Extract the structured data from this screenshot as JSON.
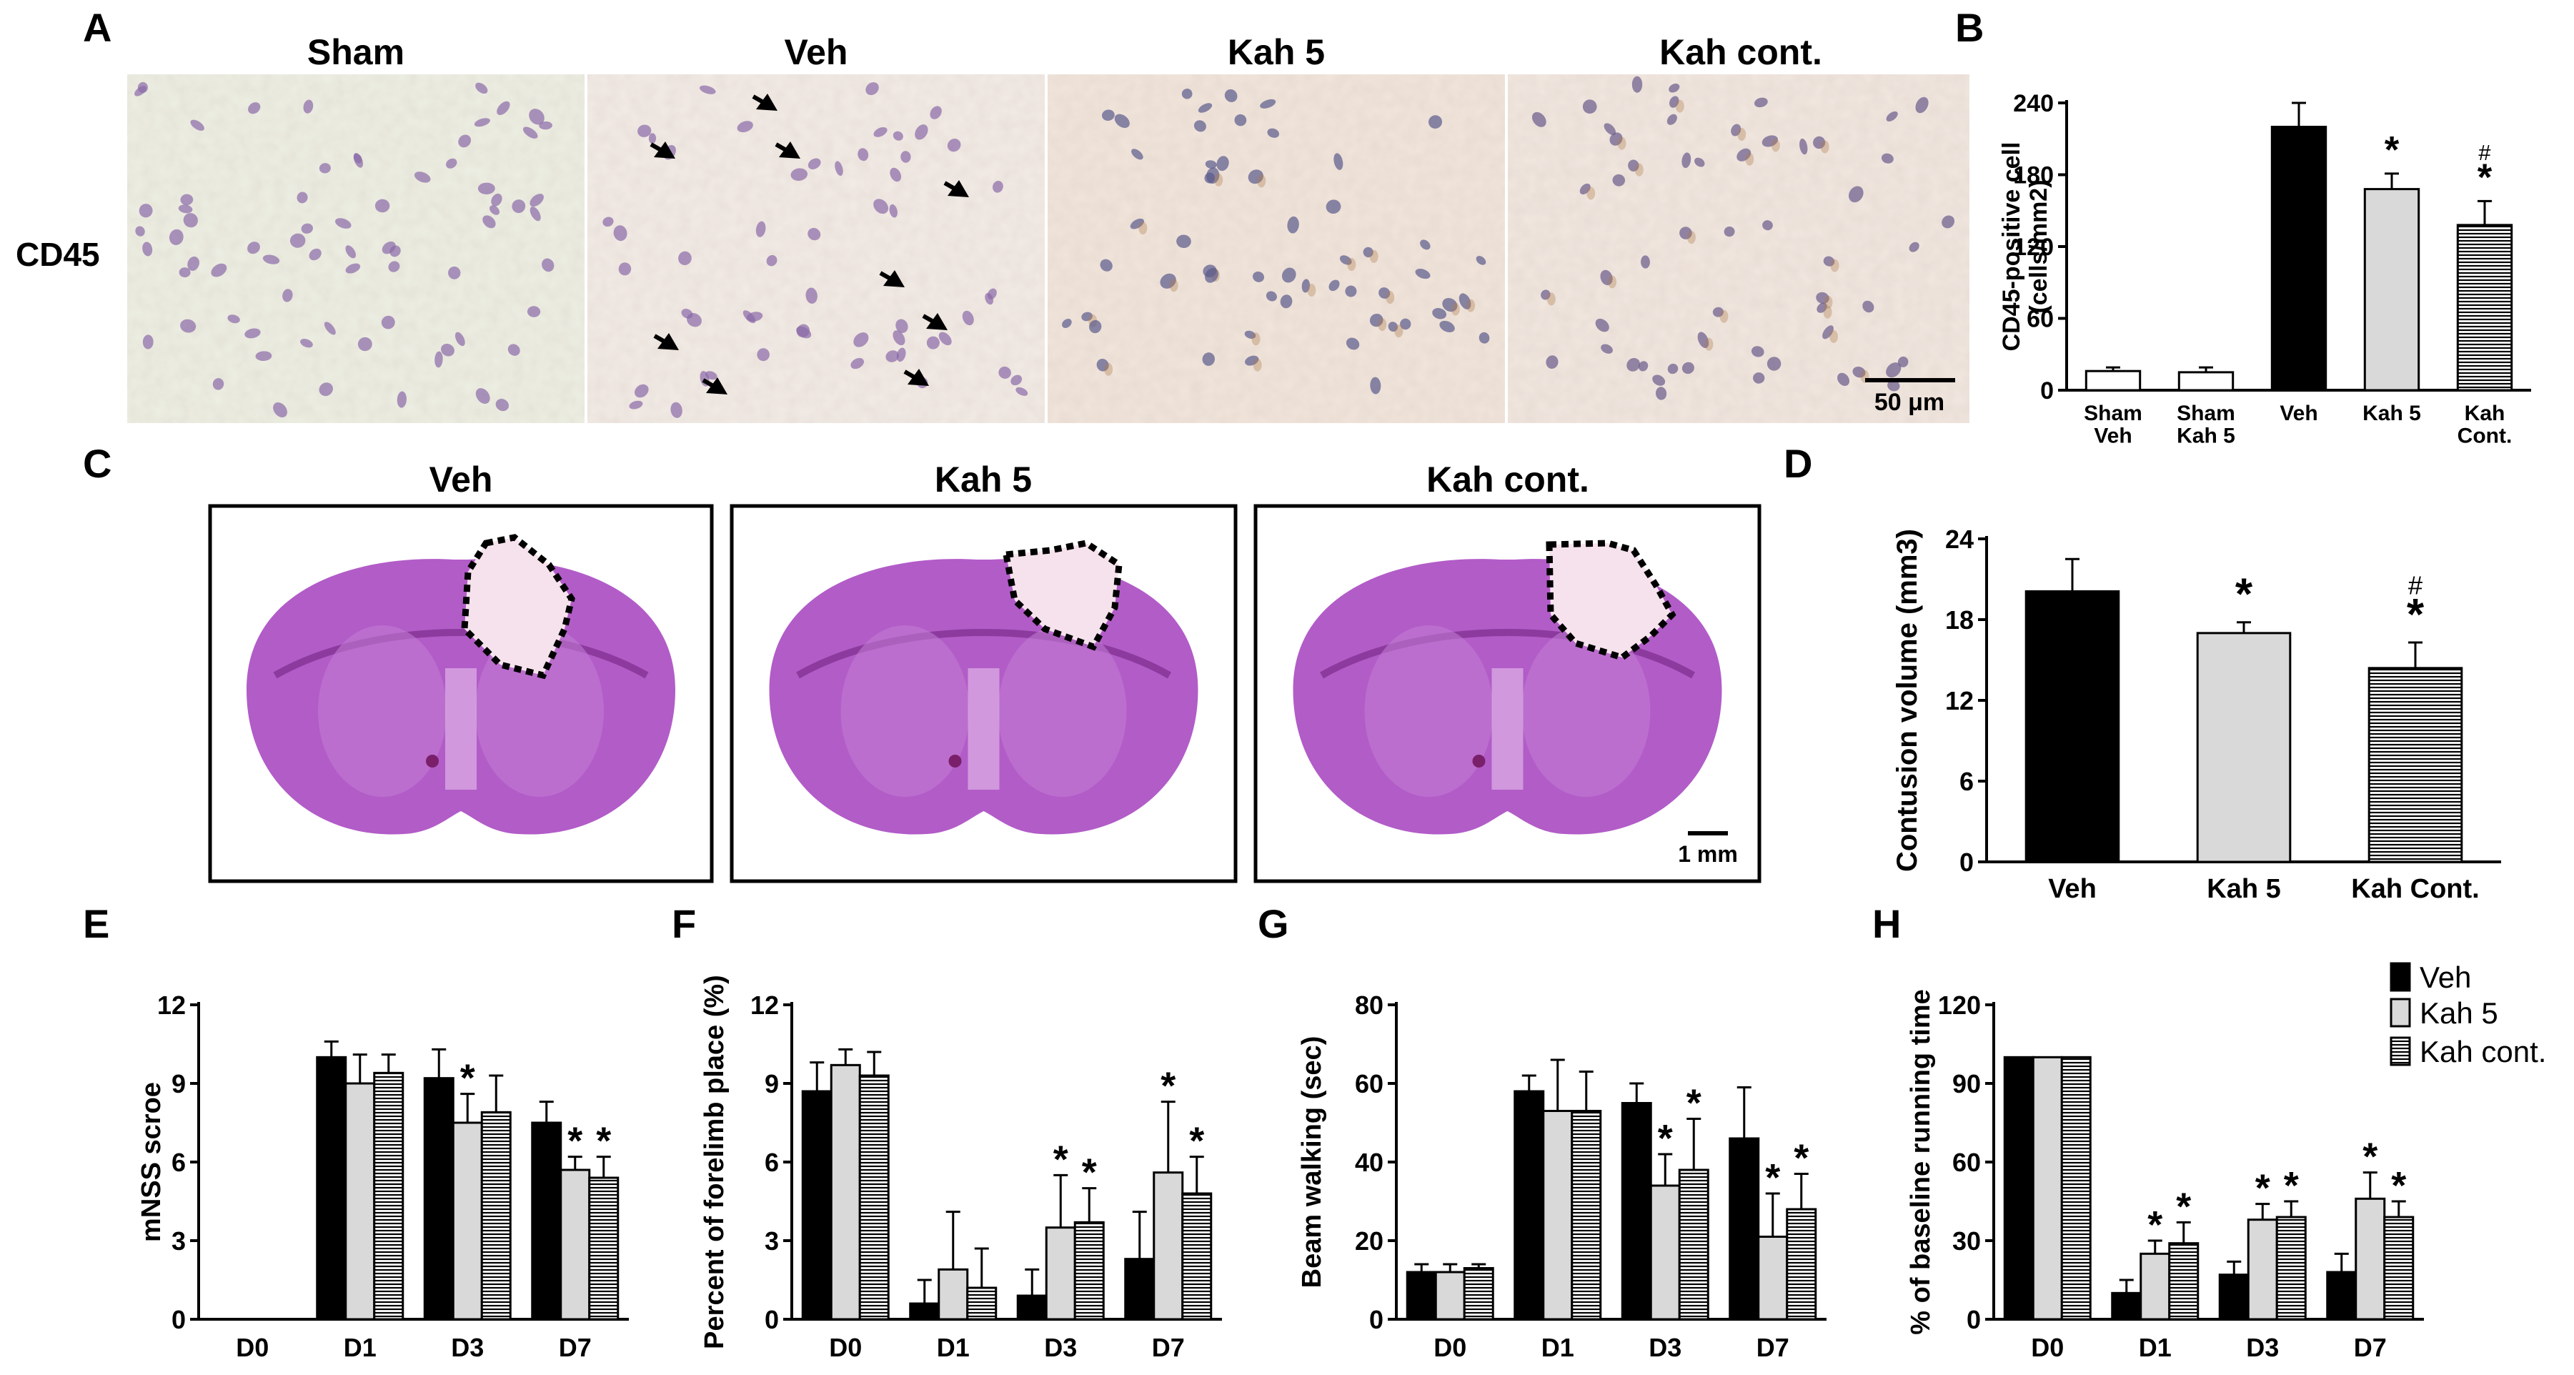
{
  "panel_letters": [
    "A",
    "B",
    "C",
    "D",
    "E",
    "F",
    "G",
    "H"
  ],
  "panel_a": {
    "row_label": "CD45",
    "titles": [
      "Sham",
      "Veh",
      "Kah 5",
      "Kah cont."
    ],
    "scale_bar": "50 μm"
  },
  "panel_c": {
    "titles": [
      "Veh",
      "Kah 5",
      "Kah cont."
    ],
    "scale_bar": "1 mm"
  },
  "legend": [
    "Veh",
    "Kah 5",
    "Kah cont."
  ],
  "colors": {
    "veh": "#000000",
    "kah5": "#d9d9d9",
    "kah_cont": "#ffffff",
    "kah_cont_hatch": "#000000",
    "stain_background": "#f3ece6",
    "section_purple": "#b25cc8"
  },
  "chart_data": [
    {
      "panel": "B",
      "type": "bar",
      "categories": [
        "Sham\nVeh",
        "Sham\nKah 5",
        "Veh",
        "Kah 5",
        "Kah\nCont."
      ],
      "values": [
        16,
        15,
        220,
        168,
        138
      ],
      "errors": [
        3,
        4,
        20,
        13,
        20
      ],
      "annotations": [
        "",
        "",
        "",
        "*",
        "#*"
      ],
      "bar_styles": [
        "white",
        "white",
        "black",
        "gray",
        "hatch"
      ],
      "ylabel_lines": [
        "CD45-positive cell",
        "(cells/mm2)"
      ],
      "ylim": [
        0,
        240
      ],
      "yticks": [
        0,
        60,
        120,
        180,
        240
      ]
    },
    {
      "panel": "D",
      "type": "bar",
      "categories": [
        "Veh",
        "Kah 5",
        "Kah Cont."
      ],
      "values": [
        20.1,
        17,
        14.4
      ],
      "errors": [
        2.4,
        0.8,
        1.9
      ],
      "annotations": [
        "",
        "*",
        "#*"
      ],
      "bar_styles": [
        "black",
        "gray",
        "hatch"
      ],
      "ylabel": "Contusion volume (mm3)",
      "ylim": [
        0,
        24
      ],
      "yticks": [
        0,
        6,
        12,
        18,
        24
      ]
    },
    {
      "panel": "E",
      "type": "bar",
      "categories": [
        "D0",
        "D1",
        "D3",
        "D7"
      ],
      "series": [
        {
          "name": "Veh",
          "values": [
            0,
            10.0,
            9.2,
            7.5
          ],
          "errors": [
            0,
            0.6,
            1.1,
            0.8
          ],
          "stars": [
            false,
            false,
            false,
            false
          ]
        },
        {
          "name": "Kah 5",
          "values": [
            0,
            9.0,
            7.5,
            5.7
          ],
          "errors": [
            0,
            1.1,
            1.1,
            0.5
          ],
          "stars": [
            false,
            false,
            true,
            true
          ]
        },
        {
          "name": "Kah cont.",
          "values": [
            0,
            9.4,
            7.9,
            5.4
          ],
          "errors": [
            0,
            0.7,
            1.4,
            0.8
          ],
          "stars": [
            false,
            false,
            false,
            true
          ]
        }
      ],
      "ylabel": "mNSS scroe",
      "ylim": [
        0,
        12
      ],
      "yticks": [
        0,
        3,
        6,
        9,
        12
      ]
    },
    {
      "panel": "F",
      "type": "bar",
      "categories": [
        "D0",
        "D1",
        "D3",
        "D7"
      ],
      "series": [
        {
          "name": "Veh",
          "values": [
            8.7,
            0.6,
            0.9,
            2.3
          ],
          "errors": [
            1.1,
            0.9,
            1.0,
            1.8
          ],
          "stars": [
            false,
            false,
            false,
            false
          ]
        },
        {
          "name": "Kah 5",
          "values": [
            9.7,
            1.9,
            3.5,
            5.6
          ],
          "errors": [
            0.6,
            2.2,
            2.0,
            2.7
          ],
          "stars": [
            false,
            false,
            true,
            true
          ]
        },
        {
          "name": "Kah cont.",
          "values": [
            9.3,
            1.2,
            3.7,
            4.8
          ],
          "errors": [
            0.9,
            1.5,
            1.3,
            1.4
          ],
          "stars": [
            false,
            false,
            true,
            true
          ]
        }
      ],
      "ylabel": "Percent of forelimb place (%)",
      "ylim": [
        0,
        12
      ],
      "yticks": [
        0,
        3,
        6,
        9,
        12
      ]
    },
    {
      "panel": "G",
      "type": "bar",
      "categories": [
        "D0",
        "D1",
        "D3",
        "D7"
      ],
      "series": [
        {
          "name": "Veh",
          "values": [
            12,
            58,
            55,
            46
          ],
          "errors": [
            2,
            4,
            5,
            13
          ],
          "stars": [
            false,
            false,
            false,
            false
          ]
        },
        {
          "name": "Kah 5",
          "values": [
            12,
            53,
            34,
            21
          ],
          "errors": [
            2,
            13,
            8,
            11
          ],
          "stars": [
            false,
            false,
            true,
            true
          ]
        },
        {
          "name": "Kah cont.",
          "values": [
            13,
            53,
            38,
            28
          ],
          "errors": [
            1,
            10,
            13,
            9
          ],
          "stars": [
            false,
            false,
            true,
            true
          ]
        }
      ],
      "ylabel": "Beam walking (sec)",
      "ylim": [
        0,
        80
      ],
      "yticks": [
        0,
        20,
        40,
        60,
        80
      ]
    },
    {
      "panel": "H",
      "type": "bar",
      "categories": [
        "D0",
        "D1",
        "D3",
        "D7"
      ],
      "series": [
        {
          "name": "Veh",
          "values": [
            100,
            10,
            17,
            18
          ],
          "errors": [
            0,
            5,
            5,
            7
          ],
          "stars": [
            false,
            false,
            false,
            false
          ]
        },
        {
          "name": "Kah 5",
          "values": [
            100,
            25,
            38,
            46
          ],
          "errors": [
            0,
            5,
            6,
            10
          ],
          "stars": [
            false,
            true,
            true,
            true
          ]
        },
        {
          "name": "Kah cont.",
          "values": [
            100,
            29,
            39,
            39
          ],
          "errors": [
            0,
            8,
            6,
            6
          ],
          "stars": [
            false,
            true,
            true,
            true
          ]
        }
      ],
      "ylabel": "% of baseline running time",
      "ylim": [
        0,
        120
      ],
      "yticks": [
        0,
        30,
        60,
        90,
        120
      ]
    }
  ]
}
